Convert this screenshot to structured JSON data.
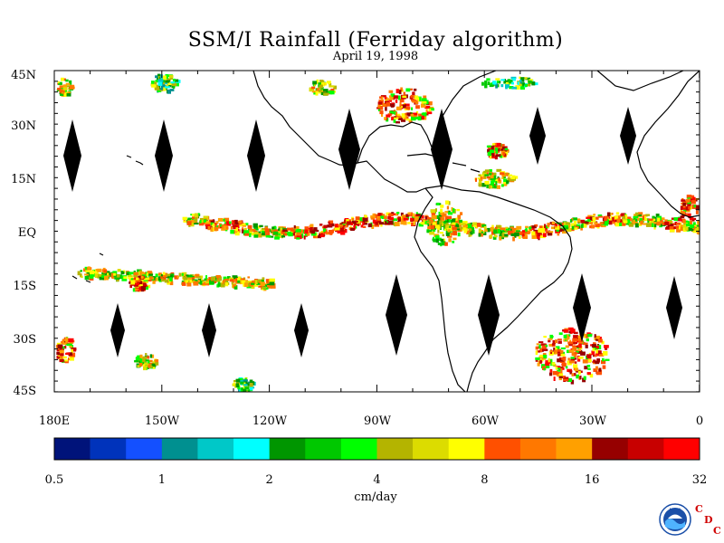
{
  "title": "SSM/I Rainfall (Ferriday algorithm)",
  "subtitle": "April 19, 1998",
  "map": {
    "lat_labels": [
      "45N",
      "30N",
      "15N",
      "EQ",
      "15S",
      "30S",
      "45S"
    ],
    "lon_labels": [
      "180E",
      "150W",
      "120W",
      "90W",
      "60W",
      "30W",
      "0"
    ],
    "lon_range": [
      -180,
      0
    ],
    "lat_range": [
      -45,
      45
    ]
  },
  "colorbar": {
    "colors": [
      "#00137a",
      "#0033bb",
      "#1450ff",
      "#009090",
      "#00c8c8",
      "#00ffff",
      "#009600",
      "#00c800",
      "#00ff00",
      "#b4b400",
      "#dcdc00",
      "#ffff00",
      "#ff5000",
      "#ff7800",
      "#ffa000",
      "#960000",
      "#c80000",
      "#ff0000"
    ],
    "tick_labels": [
      "0.5",
      "1",
      "2",
      "4",
      "8",
      "16",
      "32"
    ],
    "unit_label": "cm/day"
  },
  "logo": {
    "text": "NOAA",
    "icon": "noaa-logo-icon"
  },
  "cdc": {
    "c1": "C",
    "d": "D",
    "c2": "C"
  }
}
